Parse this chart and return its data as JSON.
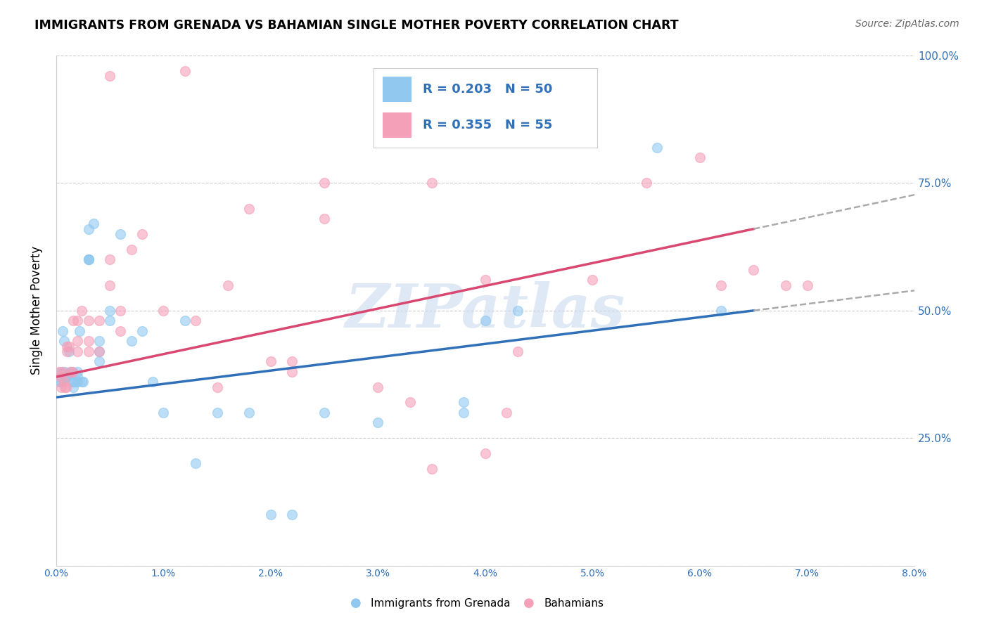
{
  "title": "IMMIGRANTS FROM GRENADA VS BAHAMIAN SINGLE MOTHER POVERTY CORRELATION CHART",
  "source": "Source: ZipAtlas.com",
  "ylabel": "Single Mother Poverty",
  "xmin": 0.0,
  "xmax": 0.08,
  "ymin": 0.0,
  "ymax": 1.0,
  "yticks": [
    0.0,
    0.25,
    0.5,
    0.75,
    1.0
  ],
  "ytick_labels": [
    "",
    "25.0%",
    "50.0%",
    "75.0%",
    "100.0%"
  ],
  "xticks": [
    0.0,
    0.01,
    0.02,
    0.03,
    0.04,
    0.05,
    0.06,
    0.07,
    0.08
  ],
  "legend_blue_label": "R = 0.203   N = 50",
  "legend_pink_label": "R = 0.355   N = 55",
  "legend_label_blue": "Immigrants from Grenada",
  "legend_label_pink": "Bahamians",
  "watermark": "ZIPatlas",
  "blue_color": "#90C8F0",
  "pink_color": "#F4A0B8",
  "blue_line_color": "#3070B8",
  "pink_line_color": "#D84870",
  "dashed_line_color": "#AAAAAA",
  "text_color": "#3070B8",
  "blue_line_x0": 0.0,
  "blue_line_y0": 0.33,
  "blue_line_x1": 0.065,
  "blue_line_y1": 0.5,
  "pink_line_x0": 0.0,
  "pink_line_y0": 0.37,
  "pink_line_x1": 0.065,
  "pink_line_y1": 0.66,
  "blue_scatter_x": [
    0.0003,
    0.0004,
    0.0005,
    0.0006,
    0.0007,
    0.0008,
    0.0009,
    0.001,
    0.001,
    0.0012,
    0.0013,
    0.0015,
    0.0015,
    0.0016,
    0.0017,
    0.002,
    0.002,
    0.002,
    0.0022,
    0.0024,
    0.0025,
    0.003,
    0.003,
    0.003,
    0.003,
    0.0035,
    0.004,
    0.004,
    0.004,
    0.005,
    0.005,
    0.006,
    0.007,
    0.008,
    0.009,
    0.01,
    0.012,
    0.013,
    0.015,
    0.018,
    0.02,
    0.022,
    0.025,
    0.03,
    0.038,
    0.04,
    0.038,
    0.043,
    0.056,
    0.062
  ],
  "blue_scatter_y": [
    0.36,
    0.38,
    0.36,
    0.46,
    0.44,
    0.38,
    0.37,
    0.37,
    0.37,
    0.42,
    0.38,
    0.38,
    0.36,
    0.35,
    0.36,
    0.36,
    0.38,
    0.37,
    0.46,
    0.36,
    0.36,
    0.66,
    0.6,
    0.6,
    0.6,
    0.67,
    0.44,
    0.42,
    0.4,
    0.5,
    0.48,
    0.65,
    0.44,
    0.46,
    0.36,
    0.3,
    0.48,
    0.2,
    0.3,
    0.3,
    0.1,
    0.1,
    0.3,
    0.28,
    0.32,
    0.48,
    0.3,
    0.5,
    0.82,
    0.5
  ],
  "pink_scatter_x": [
    0.0003,
    0.0004,
    0.0005,
    0.0006,
    0.0007,
    0.0008,
    0.0009,
    0.001,
    0.001,
    0.0012,
    0.0013,
    0.0015,
    0.0016,
    0.002,
    0.002,
    0.002,
    0.0024,
    0.003,
    0.003,
    0.003,
    0.004,
    0.004,
    0.005,
    0.005,
    0.006,
    0.006,
    0.007,
    0.008,
    0.01,
    0.013,
    0.015,
    0.016,
    0.018,
    0.02,
    0.022,
    0.022,
    0.025,
    0.03,
    0.033,
    0.035,
    0.04,
    0.042,
    0.043,
    0.05,
    0.055,
    0.06,
    0.062,
    0.065,
    0.068,
    0.07,
    0.012,
    0.025,
    0.035,
    0.005,
    0.04
  ],
  "pink_scatter_y": [
    0.38,
    0.37,
    0.35,
    0.38,
    0.36,
    0.35,
    0.35,
    0.43,
    0.42,
    0.43,
    0.38,
    0.38,
    0.48,
    0.48,
    0.42,
    0.44,
    0.5,
    0.48,
    0.44,
    0.42,
    0.48,
    0.42,
    0.6,
    0.55,
    0.5,
    0.46,
    0.62,
    0.65,
    0.5,
    0.48,
    0.35,
    0.55,
    0.7,
    0.4,
    0.38,
    0.4,
    0.75,
    0.35,
    0.32,
    0.75,
    0.56,
    0.3,
    0.42,
    0.56,
    0.75,
    0.8,
    0.55,
    0.58,
    0.55,
    0.55,
    0.97,
    0.68,
    0.19,
    0.96,
    0.22
  ]
}
